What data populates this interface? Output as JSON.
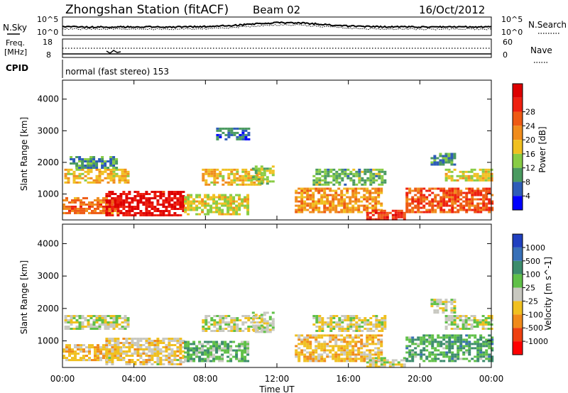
{
  "header": {
    "station": "Zhongshan Station (fitACF)",
    "beam": "Beam 02",
    "date": "16/Oct/2012"
  },
  "top_panels": {
    "nsky": {
      "label": "N.Sky",
      "y_ticks": [
        "10^5",
        "10^0"
      ]
    },
    "nsearch": {
      "label": "N.Search",
      "y_ticks": [
        "10^5",
        "10^0"
      ]
    },
    "freq": {
      "label_line1": "Freq.",
      "label_line2": "[MHz]",
      "y_ticks": [
        "18",
        "8"
      ]
    },
    "nave": {
      "label": "Nave",
      "y_ticks": [
        "60",
        "0"
      ]
    },
    "cpid": {
      "label": "CPID",
      "text": "normal (fast stereo) 153"
    }
  },
  "colors": {
    "power_scale": [
      "#0000ff",
      "#2e5cb8",
      "#4a9a60",
      "#88cc44",
      "#f0c020",
      "#f08c1c",
      "#ee5a14",
      "#ee2010",
      "#dd0000"
    ],
    "velocity_scale": [
      "#2040c0",
      "#3870b8",
      "#3c8c6c",
      "#60c048",
      "#c8c8c0",
      "#f0c020",
      "#f08a1a",
      "#ee4010",
      "#ff0000"
    ]
  },
  "chart_data": [
    {
      "type": "heatmap",
      "panel": "power",
      "ylabel": "Slant Range [km]",
      "yticks": [
        1000,
        2000,
        3000,
        4000
      ],
      "ylim": [
        180,
        4600
      ],
      "xlabel": "",
      "xticks": [
        "00:00",
        "04:00",
        "08:00",
        "12:00",
        "16:00",
        "20:00",
        "00:00"
      ],
      "xlim": [
        0,
        24
      ],
      "colorbar": {
        "label": "Power [dB]",
        "ticks": [
          "4",
          "8",
          "12",
          "16",
          "20",
          "24",
          "28"
        ],
        "range": [
          0,
          30
        ]
      },
      "regions": [
        {
          "t0": 0.0,
          "t1": 3.2,
          "r0": 400,
          "r1": 900,
          "v": 20
        },
        {
          "t0": 2.4,
          "t1": 6.8,
          "r0": 300,
          "r1": 1100,
          "v": 27
        },
        {
          "t0": 0.1,
          "t1": 3.6,
          "r0": 1350,
          "r1": 1800,
          "v": 16
        },
        {
          "t0": 0.4,
          "t1": 3.0,
          "r0": 1850,
          "r1": 2200,
          "v": 8
        },
        {
          "t0": 6.8,
          "t1": 10.4,
          "r0": 350,
          "r1": 1000,
          "v": 14
        },
        {
          "t0": 7.8,
          "t1": 11.2,
          "r0": 1300,
          "r1": 1800,
          "v": 16
        },
        {
          "t0": 8.6,
          "t1": 10.4,
          "r0": 2700,
          "r1": 3100,
          "v": 6
        },
        {
          "t0": 10.6,
          "t1": 11.8,
          "r0": 1300,
          "r1": 1900,
          "v": 12
        },
        {
          "t0": 13.0,
          "t1": 17.8,
          "r0": 400,
          "r1": 1200,
          "v": 18
        },
        {
          "t0": 14.0,
          "t1": 18.0,
          "r0": 1300,
          "r1": 1800,
          "v": 10
        },
        {
          "t0": 17.0,
          "t1": 19.2,
          "r0": 200,
          "r1": 500,
          "v": 24
        },
        {
          "t0": 19.2,
          "t1": 24.0,
          "r0": 400,
          "r1": 1200,
          "v": 22
        },
        {
          "t0": 21.4,
          "t1": 24.0,
          "r0": 1400,
          "r1": 1800,
          "v": 14
        },
        {
          "t0": 20.6,
          "t1": 22.0,
          "r0": 1900,
          "r1": 2300,
          "v": 8
        }
      ]
    },
    {
      "type": "heatmap",
      "panel": "velocity",
      "ylabel": "Slant Range [km]",
      "yticks": [
        1000,
        2000,
        3000,
        4000
      ],
      "ylim": [
        180,
        4600
      ],
      "xlabel": "Time UT",
      "xticks": [
        "00:00",
        "04:00",
        "08:00",
        "12:00",
        "16:00",
        "20:00",
        "00:00"
      ],
      "xlim": [
        0,
        24
      ],
      "colorbar": {
        "label": "Velocity [m s^-1]",
        "ticks": [
          "1000",
          "500",
          "100",
          "25",
          "-25",
          "-100",
          "-500",
          "-1000"
        ],
        "range": [
          -1200,
          1200
        ]
      },
      "regions": [
        {
          "t0": 0.0,
          "t1": 3.2,
          "r0": 400,
          "r1": 900,
          "v": -300
        },
        {
          "t0": 2.4,
          "t1": 6.8,
          "r0": 300,
          "r1": 1100,
          "v": -150
        },
        {
          "t0": 0.1,
          "t1": 3.6,
          "r0": 1350,
          "r1": 1800,
          "v": 0
        },
        {
          "t0": 6.8,
          "t1": 10.4,
          "r0": 350,
          "r1": 1000,
          "v": 300
        },
        {
          "t0": 7.8,
          "t1": 11.2,
          "r0": 1300,
          "r1": 1800,
          "v": 0
        },
        {
          "t0": 10.6,
          "t1": 11.8,
          "r0": 1300,
          "r1": 1900,
          "v": 40
        },
        {
          "t0": 13.0,
          "t1": 17.8,
          "r0": 400,
          "r1": 1200,
          "v": -300
        },
        {
          "t0": 14.0,
          "t1": 18.0,
          "r0": 1300,
          "r1": 1800,
          "v": -60
        },
        {
          "t0": 17.0,
          "t1": 19.2,
          "r0": 200,
          "r1": 500,
          "v": -80
        },
        {
          "t0": 19.2,
          "t1": 24.0,
          "r0": 400,
          "r1": 1200,
          "v": 400
        },
        {
          "t0": 21.4,
          "t1": 24.0,
          "r0": 1400,
          "r1": 1800,
          "v": 0
        },
        {
          "t0": 20.6,
          "t1": 22.0,
          "r0": 1900,
          "r1": 2300,
          "v": 0
        }
      ]
    }
  ]
}
